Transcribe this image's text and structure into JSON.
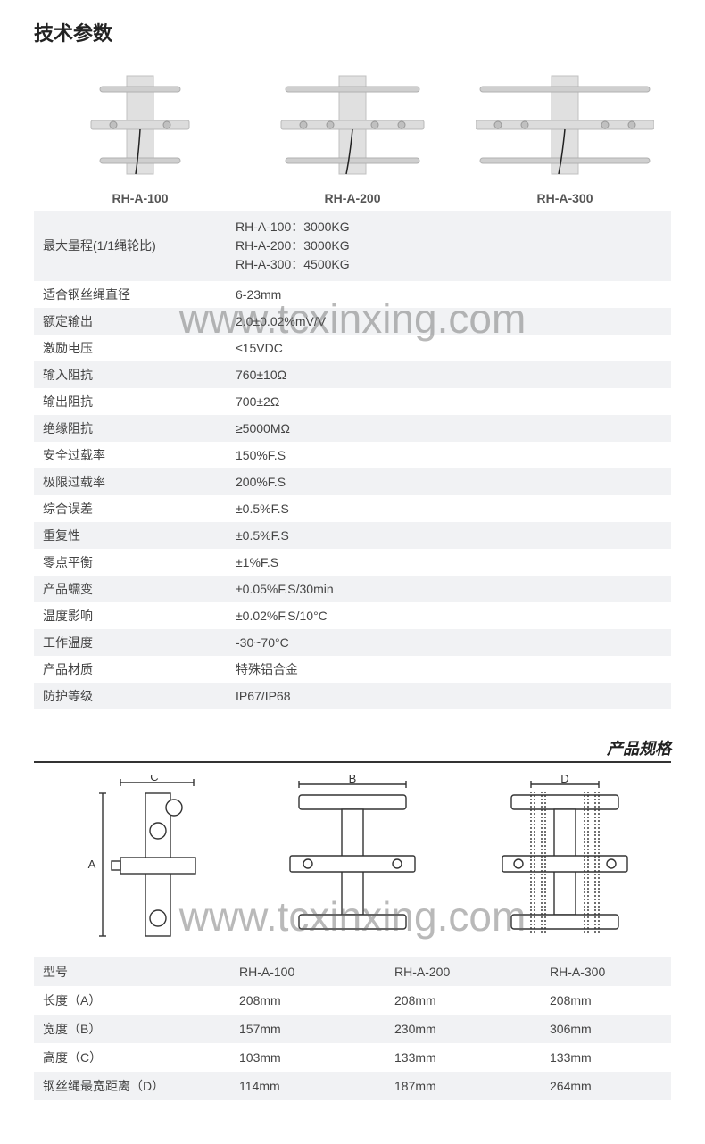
{
  "colors": {
    "row_alt_bg": "#f1f2f4",
    "text": "#444444",
    "title": "#222222",
    "border": "#333333",
    "product_body": "#d8d8d8",
    "product_edge": "#b8b8b8",
    "diagram_stroke": "#333333",
    "watermark": "rgba(100,100,100,0.45)"
  },
  "watermark_text": "www.tcxinxing.com",
  "section1_title": "技术参数",
  "products": [
    {
      "label": "RH-A-100"
    },
    {
      "label": "RH-A-200"
    },
    {
      "label": "RH-A-300"
    }
  ],
  "spec_table": [
    {
      "label": "最大量程(1/1绳轮比)",
      "value": "RH-A-100：3000KG\nRH-A-200：3000KG\nRH-A-300：4500KG",
      "tall": true
    },
    {
      "label": "适合钢丝绳直径",
      "value": "6-23mm"
    },
    {
      "label": "额定输出",
      "value": "2.0±0.02%mV/V"
    },
    {
      "label": "激励电压",
      "value": "≤15VDC"
    },
    {
      "label": "输入阻抗",
      "value": "760±10Ω"
    },
    {
      "label": "输出阻抗",
      "value": "700±2Ω"
    },
    {
      "label": "绝缘阻抗",
      "value": "≥5000MΩ"
    },
    {
      "label": "安全过载率",
      "value": "150%F.S"
    },
    {
      "label": "极限过载率",
      "value": "200%F.S"
    },
    {
      "label": "综合误差",
      "value": "±0.5%F.S"
    },
    {
      "label": "重复性",
      "value": "±0.5%F.S"
    },
    {
      "label": "零点平衡",
      "value": "±1%F.S"
    },
    {
      "label": "产品蠕变",
      "value": "±0.05%F.S/30min"
    },
    {
      "label": "温度影响",
      "value": "±0.02%F.S/10°C"
    },
    {
      "label": "工作温度",
      "value": "-30~70°C"
    },
    {
      "label": "产品材质",
      "value": "特殊铝合金"
    },
    {
      "label": "防护等级",
      "value": "IP67/IP68"
    }
  ],
  "section2_title": "产品规格",
  "dim_table": {
    "header": [
      "型号",
      "RH-A-100",
      "RH-A-200",
      "RH-A-300"
    ],
    "rows": [
      [
        "长度（A）",
        "208mm",
        "208mm",
        "208mm"
      ],
      [
        "宽度（B）",
        "157mm",
        "230mm",
        "306mm"
      ],
      [
        "高度（C）",
        "103mm",
        "133mm",
        "133mm"
      ],
      [
        "钢丝绳最宽距离（D）",
        "114mm",
        "187mm",
        "264mm"
      ]
    ],
    "col_widths": [
      "220px",
      "174px",
      "174px",
      "auto"
    ]
  }
}
